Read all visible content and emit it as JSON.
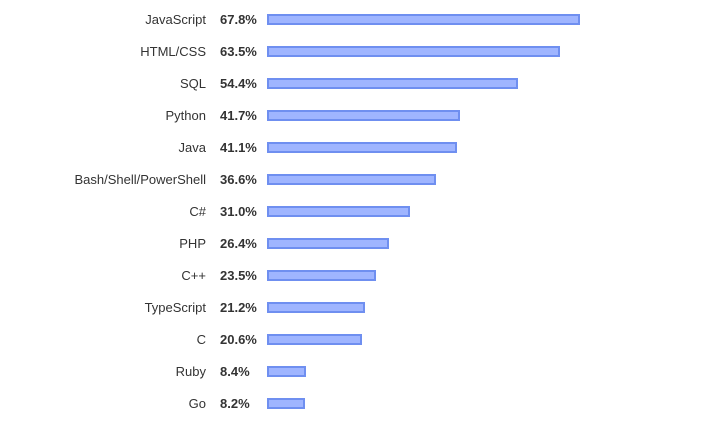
{
  "chart_data": {
    "type": "bar",
    "orientation": "horizontal",
    "unit": "%",
    "categories": [
      "JavaScript",
      "HTML/CSS",
      "SQL",
      "Python",
      "Java",
      "Bash/Shell/PowerShell",
      "C#",
      "PHP",
      "C++",
      "TypeScript",
      "C",
      "Ruby",
      "Go"
    ],
    "values": [
      67.8,
      63.5,
      54.4,
      41.7,
      41.1,
      36.6,
      31.0,
      26.4,
      23.5,
      21.2,
      20.6,
      8.4,
      8.2
    ],
    "value_labels": [
      "67.8%",
      "63.5%",
      "54.4%",
      "41.7%",
      "41.1%",
      "36.6%",
      "31.0%",
      "26.4%",
      "23.5%",
      "21.2%",
      "20.6%",
      "8.4%",
      "8.2%"
    ],
    "title": "",
    "xlabel": "",
    "ylabel": "",
    "grid": false,
    "colors": {
      "bar_fill": "#9fb5ff",
      "bar_stroke": "#6f8ff0",
      "text": "#333333"
    }
  }
}
